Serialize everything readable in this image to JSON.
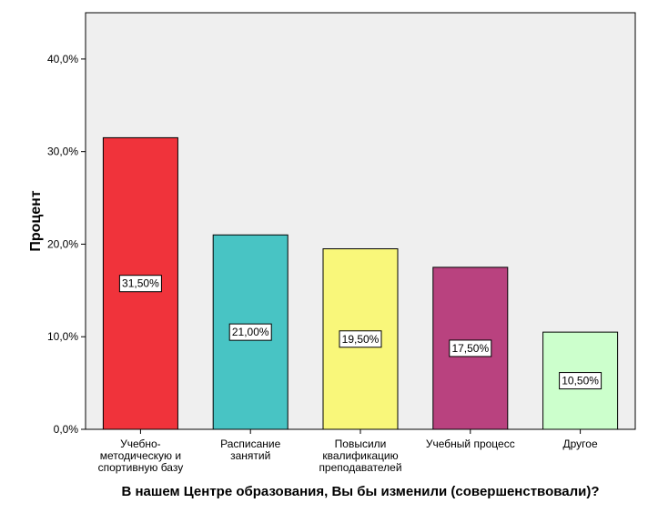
{
  "chart_data": {
    "type": "bar",
    "title": "",
    "xlabel": "В нашем Центре образования, Вы бы изменили (совершенствовали)?",
    "ylabel": "Процент",
    "ylim": [
      0,
      45
    ],
    "yticks": [
      {
        "value": 0,
        "label": "0,0%"
      },
      {
        "value": 10,
        "label": "10,0%"
      },
      {
        "value": 20,
        "label": "20,0%"
      },
      {
        "value": 30,
        "label": "30,0%"
      },
      {
        "value": 40,
        "label": "40,0%"
      }
    ],
    "grid": false,
    "categories": [
      {
        "id": "uchebno-metodicheskaya",
        "lines": [
          "Учебно-",
          "методическую и",
          "спортивную базу"
        ],
        "value": 31.5,
        "data_label": "31,50%",
        "color": "#f0333b"
      },
      {
        "id": "raspisanie",
        "lines": [
          "Расписание",
          "занятий"
        ],
        "value": 21.0,
        "data_label": "21,00%",
        "color": "#48c4c4"
      },
      {
        "id": "povysili-kvalifikaciyu",
        "lines": [
          "Повысили",
          "квалификацию",
          "преподавателей"
        ],
        "value": 19.5,
        "data_label": "19,50%",
        "color": "#f9f77a"
      },
      {
        "id": "uchebnyi-process",
        "lines": [
          "Учебный процесс"
        ],
        "value": 17.5,
        "data_label": "17,50%",
        "color": "#b9427f"
      },
      {
        "id": "drugoe",
        "lines": [
          "Другое"
        ],
        "value": 10.5,
        "data_label": "10,50%",
        "color": "#ccffcc"
      }
    ],
    "colors": {
      "plot_background": "#efefef",
      "frame": "#000000"
    }
  }
}
